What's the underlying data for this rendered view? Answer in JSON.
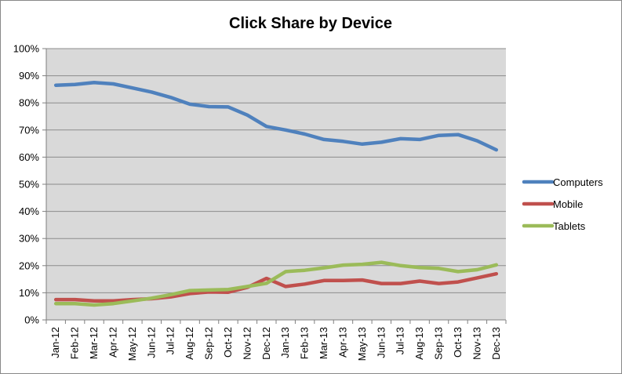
{
  "chart_data": {
    "type": "line",
    "title": "Click Share by Device",
    "xlabel": "",
    "ylabel": "",
    "categories": [
      "Jan-12",
      "Feb-12",
      "Mar-12",
      "Apr-12",
      "May-12",
      "Jun-12",
      "Jul-12",
      "Aug-12",
      "Sep-12",
      "Oct-12",
      "Nov-12",
      "Dec-12",
      "Jan-13",
      "Feb-13",
      "Mar-13",
      "Apr-13",
      "May-13",
      "Jun-13",
      "Jul-13",
      "Aug-13",
      "Sep-13",
      "Oct-13",
      "Nov-13",
      "Dec-13"
    ],
    "ylim": [
      0,
      100
    ],
    "yticks": [
      "0%",
      "10%",
      "20%",
      "30%",
      "40%",
      "50%",
      "60%",
      "70%",
      "80%",
      "90%",
      "100%"
    ],
    "ytick_values": [
      0,
      10,
      20,
      30,
      40,
      50,
      60,
      70,
      80,
      90,
      100
    ],
    "grid": true,
    "legend_position": "right",
    "plot_background": "#D9D9D9",
    "series": [
      {
        "name": "Computers",
        "color": "#4F81BD",
        "values": [
          86.5,
          86.8,
          87.5,
          87.0,
          85.5,
          84.0,
          82.0,
          79.5,
          78.6,
          78.5,
          75.5,
          71.3,
          70.0,
          68.5,
          66.5,
          65.8,
          64.8,
          65.5,
          66.8,
          66.5,
          68.0,
          68.3,
          66.0,
          62.7
        ]
      },
      {
        "name": "Mobile",
        "color": "#C0504D",
        "values": [
          7.5,
          7.5,
          7.0,
          7.0,
          7.5,
          7.8,
          8.5,
          9.7,
          10.3,
          10.2,
          12.0,
          15.3,
          12.3,
          13.2,
          14.5,
          14.5,
          14.7,
          13.4,
          13.4,
          14.3,
          13.4,
          14.0,
          15.5,
          17.0
        ]
      },
      {
        "name": "Tablets",
        "color": "#9BBB59",
        "values": [
          6.0,
          6.0,
          5.5,
          6.0,
          7.0,
          8.0,
          9.3,
          10.8,
          11.0,
          11.2,
          12.3,
          13.5,
          17.8,
          18.3,
          19.2,
          20.2,
          20.5,
          21.2,
          20.0,
          19.3,
          19.0,
          17.8,
          18.5,
          20.3
        ]
      }
    ]
  }
}
